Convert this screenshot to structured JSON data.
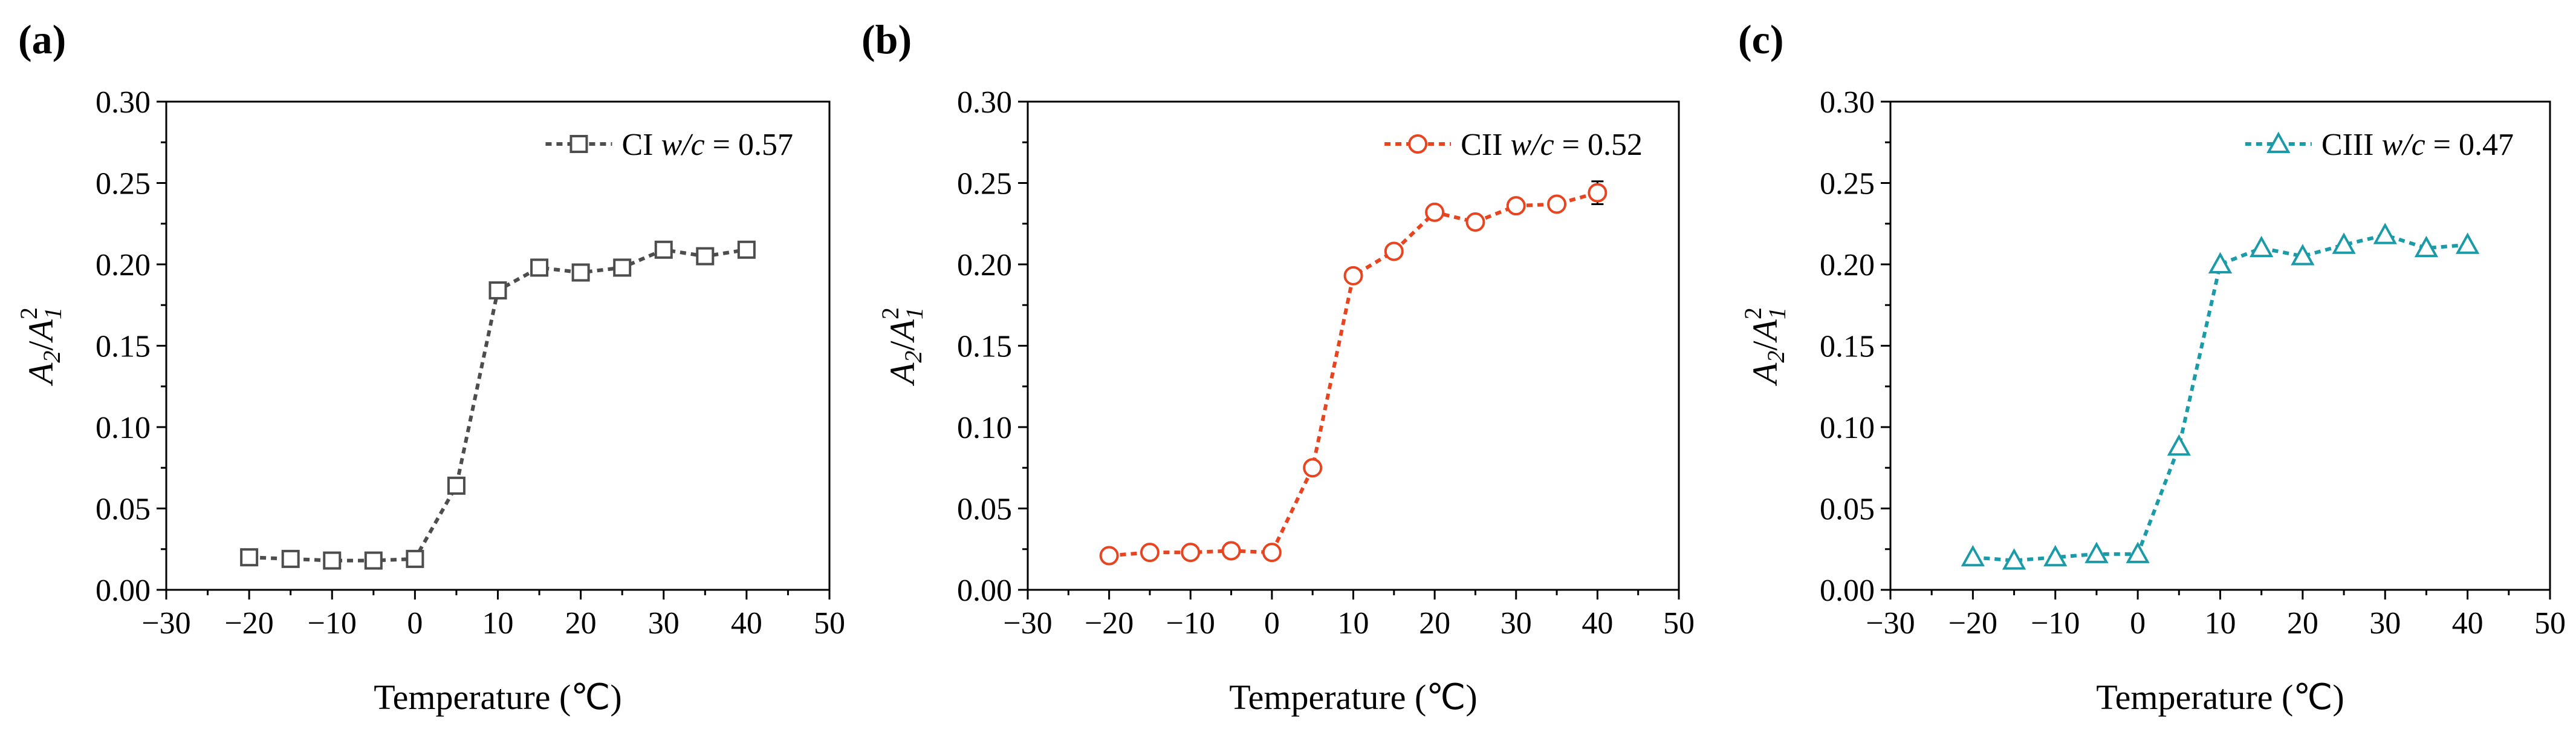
{
  "chart_data": [
    {
      "type": "line",
      "panel": "(a)",
      "title": "",
      "xlabel": "Temperature (℃)",
      "ylabel": {
        "a": "A",
        "sub1": "2",
        "slash": "/",
        "b": "A",
        "sup": "2",
        "sub2": "1"
      },
      "xlim": [
        -30,
        50
      ],
      "ylim": [
        0.0,
        0.3
      ],
      "xticks": [
        -30,
        -20,
        -10,
        0,
        10,
        20,
        30,
        40,
        50
      ],
      "xtick_labels": [
        "−30",
        "−20",
        "−10",
        "0",
        "10",
        "20",
        "30",
        "40",
        "50"
      ],
      "yticks": [
        0.0,
        0.05,
        0.1,
        0.15,
        0.2,
        0.25,
        0.3
      ],
      "ytick_labels": [
        "0.00",
        "0.05",
        "0.10",
        "0.15",
        "0.20",
        "0.25",
        "0.30"
      ],
      "legend_position": "top-right",
      "series": [
        {
          "name": "CI w/c = 0.57",
          "label": {
            "prefix": "CI ",
            "italic": "w/c",
            "suffix": " = 0.57"
          },
          "color": "#4d4d4d",
          "marker": "square",
          "x": [
            -20,
            -15,
            -10,
            -5,
            0,
            5,
            10,
            15,
            20,
            25,
            30,
            35,
            40
          ],
          "y": [
            0.02,
            0.019,
            0.018,
            0.018,
            0.019,
            0.064,
            0.184,
            0.198,
            0.195,
            0.198,
            0.209,
            0.205,
            0.209
          ],
          "err": [
            0,
            0,
            0,
            0,
            0,
            0,
            0,
            0,
            0,
            0,
            0,
            0,
            0
          ]
        }
      ]
    },
    {
      "type": "line",
      "panel": "(b)",
      "title": "",
      "xlabel": "Temperature (℃)",
      "ylabel": {
        "a": "A",
        "sub1": "2",
        "slash": "/",
        "b": "A",
        "sup": "2",
        "sub2": "1"
      },
      "xlim": [
        -30,
        50
      ],
      "ylim": [
        0.0,
        0.3
      ],
      "xticks": [
        -30,
        -20,
        -10,
        0,
        10,
        20,
        30,
        40,
        50
      ],
      "xtick_labels": [
        "−30",
        "−20",
        "−10",
        "0",
        "10",
        "20",
        "30",
        "40",
        "50"
      ],
      "yticks": [
        0.0,
        0.05,
        0.1,
        0.15,
        0.2,
        0.25,
        0.3
      ],
      "ytick_labels": [
        "0.00",
        "0.05",
        "0.10",
        "0.15",
        "0.20",
        "0.25",
        "0.30"
      ],
      "legend_position": "top-right",
      "series": [
        {
          "name": "CII w/c = 0.52",
          "label": {
            "prefix": "CII ",
            "italic": "w/c",
            "suffix": " = 0.52"
          },
          "color": "#e8441f",
          "marker": "circle",
          "x": [
            -20,
            -15,
            -10,
            -5,
            0,
            5,
            10,
            15,
            20,
            25,
            30,
            35,
            40
          ],
          "y": [
            0.021,
            0.023,
            0.023,
            0.024,
            0.023,
            0.075,
            0.193,
            0.208,
            0.232,
            0.226,
            0.236,
            0.237,
            0.244
          ],
          "err": [
            0,
            0,
            0,
            0,
            0,
            0,
            0,
            0.003,
            0,
            0,
            0,
            0,
            0.007
          ]
        }
      ]
    },
    {
      "type": "line",
      "panel": "(c)",
      "title": "",
      "xlabel": "Temperature (℃)",
      "ylabel": {
        "a": "A",
        "sub1": "2",
        "slash": "/",
        "b": "A",
        "sup": "2",
        "sub2": "1"
      },
      "xlim": [
        -30,
        50
      ],
      "ylim": [
        0.0,
        0.3
      ],
      "xticks": [
        -30,
        -20,
        -10,
        0,
        10,
        20,
        30,
        40,
        50
      ],
      "xtick_labels": [
        "−30",
        "−20",
        "−10",
        "0",
        "10",
        "20",
        "30",
        "40",
        "50"
      ],
      "yticks": [
        0.0,
        0.05,
        0.1,
        0.15,
        0.2,
        0.25,
        0.3
      ],
      "ytick_labels": [
        "0.00",
        "0.05",
        "0.10",
        "0.15",
        "0.20",
        "0.25",
        "0.30"
      ],
      "legend_position": "top-right",
      "series": [
        {
          "name": "CIII w/c = 0.47",
          "label": {
            "prefix": "CIII ",
            "italic": "w/c",
            "suffix": " = 0.47"
          },
          "color": "#1b9aa8",
          "marker": "triangle",
          "x": [
            -20,
            -15,
            -10,
            -5,
            0,
            5,
            10,
            15,
            20,
            25,
            30,
            35,
            40
          ],
          "y": [
            0.02,
            0.018,
            0.02,
            0.022,
            0.022,
            0.088,
            0.2,
            0.21,
            0.205,
            0.212,
            0.218,
            0.21,
            0.212
          ],
          "err": [
            0,
            0,
            0,
            0,
            0,
            0,
            0,
            0,
            0,
            0,
            0,
            0,
            0
          ]
        }
      ]
    }
  ]
}
